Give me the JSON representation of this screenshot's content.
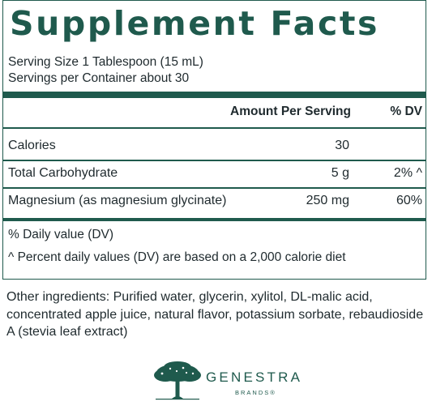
{
  "title": "Supplement Facts",
  "serving_size": "Serving Size 1 Tablespoon (15 mL)",
  "servings_per_container": "Servings per Container about 30",
  "header": {
    "amount": "Amount Per Serving",
    "dv": "% DV"
  },
  "rows": [
    {
      "label": "Calories",
      "amount": "30",
      "dv": ""
    },
    {
      "label": "Total Carbohydrate",
      "amount": "5 g",
      "dv": "2% ^"
    },
    {
      "label": "Magnesium (as magnesium glycinate)",
      "amount": "250 mg",
      "dv": "60%"
    }
  ],
  "footnotes": [
    "% Daily value (DV)",
    "^ Percent daily values (DV) are based on a 2,000 calorie diet"
  ],
  "other_ingredients": "Other ingredients: Purified water, glycerin, xylitol, DL-malic acid, concentrated apple juice, natural flavor, potassium sorbate, rebaudioside A (stevia leaf extract)",
  "brand": {
    "name": "GENESTRA",
    "sub": "BRANDS®",
    "logo_icon": "tree-icon",
    "color": "#1f5a4d"
  }
}
